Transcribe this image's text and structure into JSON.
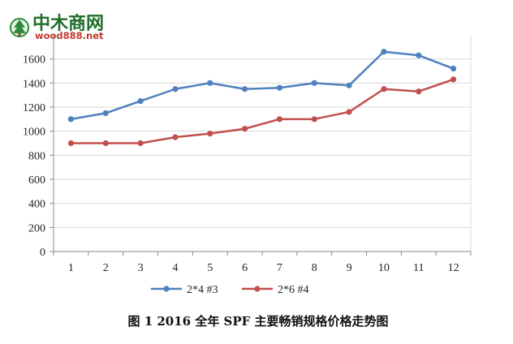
{
  "watermark": {
    "name": "中木商网",
    "url": "wood888.net"
  },
  "caption": "图 1  2016 全年 SPF 主要畅销规格价格走势图",
  "chart_data": {
    "type": "line",
    "title": "",
    "xlabel": "",
    "ylabel": "",
    "x": [
      1,
      2,
      3,
      4,
      5,
      6,
      7,
      8,
      9,
      10,
      11,
      12
    ],
    "ylim": [
      0,
      1800
    ],
    "yticks": [
      0,
      200,
      400,
      600,
      800,
      1000,
      1200,
      1400,
      1600
    ],
    "grid": true,
    "legend_position": "bottom-left",
    "series": [
      {
        "name": "2*4 #3",
        "color": "#4f81bd",
        "values": [
          1100,
          1150,
          1250,
          1350,
          1400,
          1350,
          1360,
          1400,
          1380,
          1660,
          1630,
          1520
        ]
      },
      {
        "name": "2*6 #4",
        "color": "#c0504d",
        "values": [
          900,
          900,
          900,
          950,
          980,
          1020,
          1100,
          1100,
          1160,
          1350,
          1330,
          1430
        ]
      }
    ]
  }
}
